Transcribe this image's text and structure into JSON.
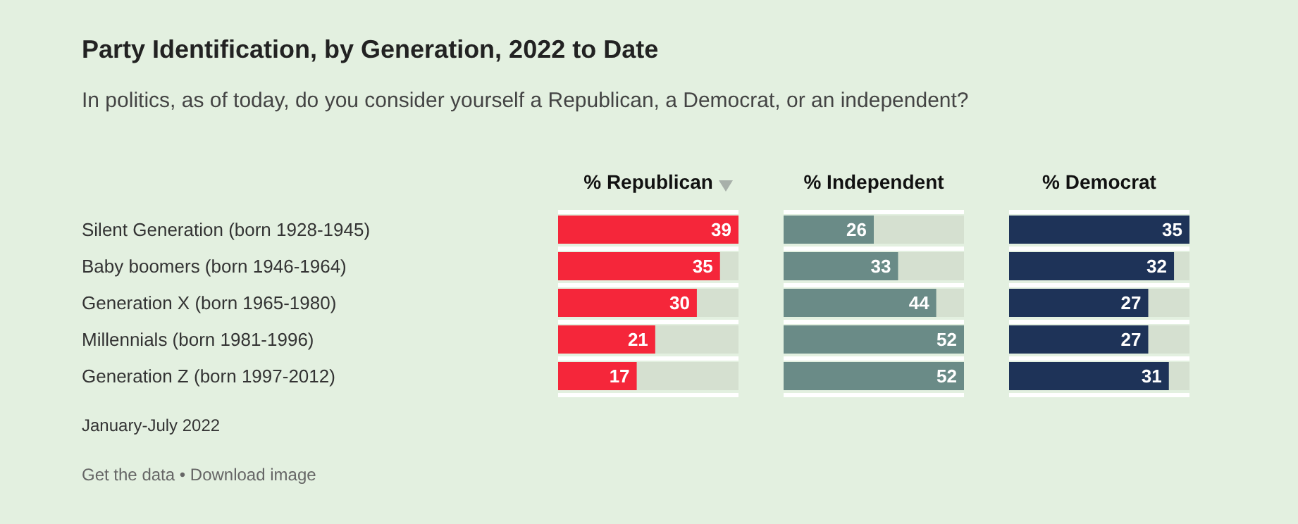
{
  "chart_data": [
    {
      "type": "bar",
      "orientation": "horizontal",
      "title": "Party Identification, by Generation, 2022 to Date",
      "subtitle": "In politics, as of today, do you consider yourself a Republican, a Democrat, or an independent?",
      "xlabel": "% Republican",
      "categories": [
        "Silent Generation (born 1928-1945)",
        "Baby boomers (born 1946-1964)",
        "Generation X (born 1965-1980)",
        "Millennials (born 1981-1996)",
        "Generation Z (born 1997-2012)"
      ],
      "values": [
        39,
        35,
        30,
        21,
        17
      ],
      "color": "#f5263a",
      "xlim": [
        0,
        39
      ],
      "data_labels": true,
      "tick_labels": "y",
      "grid": "y",
      "annotations": [
        "January-July 2022",
        "Get the data • Download image"
      ]
    },
    {
      "type": "bar",
      "orientation": "horizontal",
      "xlabel": "% Independent",
      "categories": [
        null,
        null,
        null,
        null,
        null
      ],
      "values": [
        26,
        33,
        44,
        52,
        52
      ],
      "color": "#6a8b87",
      "xlim": [
        0,
        52
      ],
      "data_labels": true,
      "tick_labels": "y",
      "grid": "y"
    },
    {
      "type": "bar",
      "orientation": "horizontal",
      "xlabel": "% Democrat",
      "categories": [
        null,
        null,
        null,
        null,
        null
      ],
      "values": [
        35,
        32,
        27,
        27,
        31
      ],
      "color": "#1e3358",
      "xlim": [
        0,
        35
      ],
      "data_labels": true,
      "tick_labels": "y",
      "grid": "y"
    }
  ]
}
